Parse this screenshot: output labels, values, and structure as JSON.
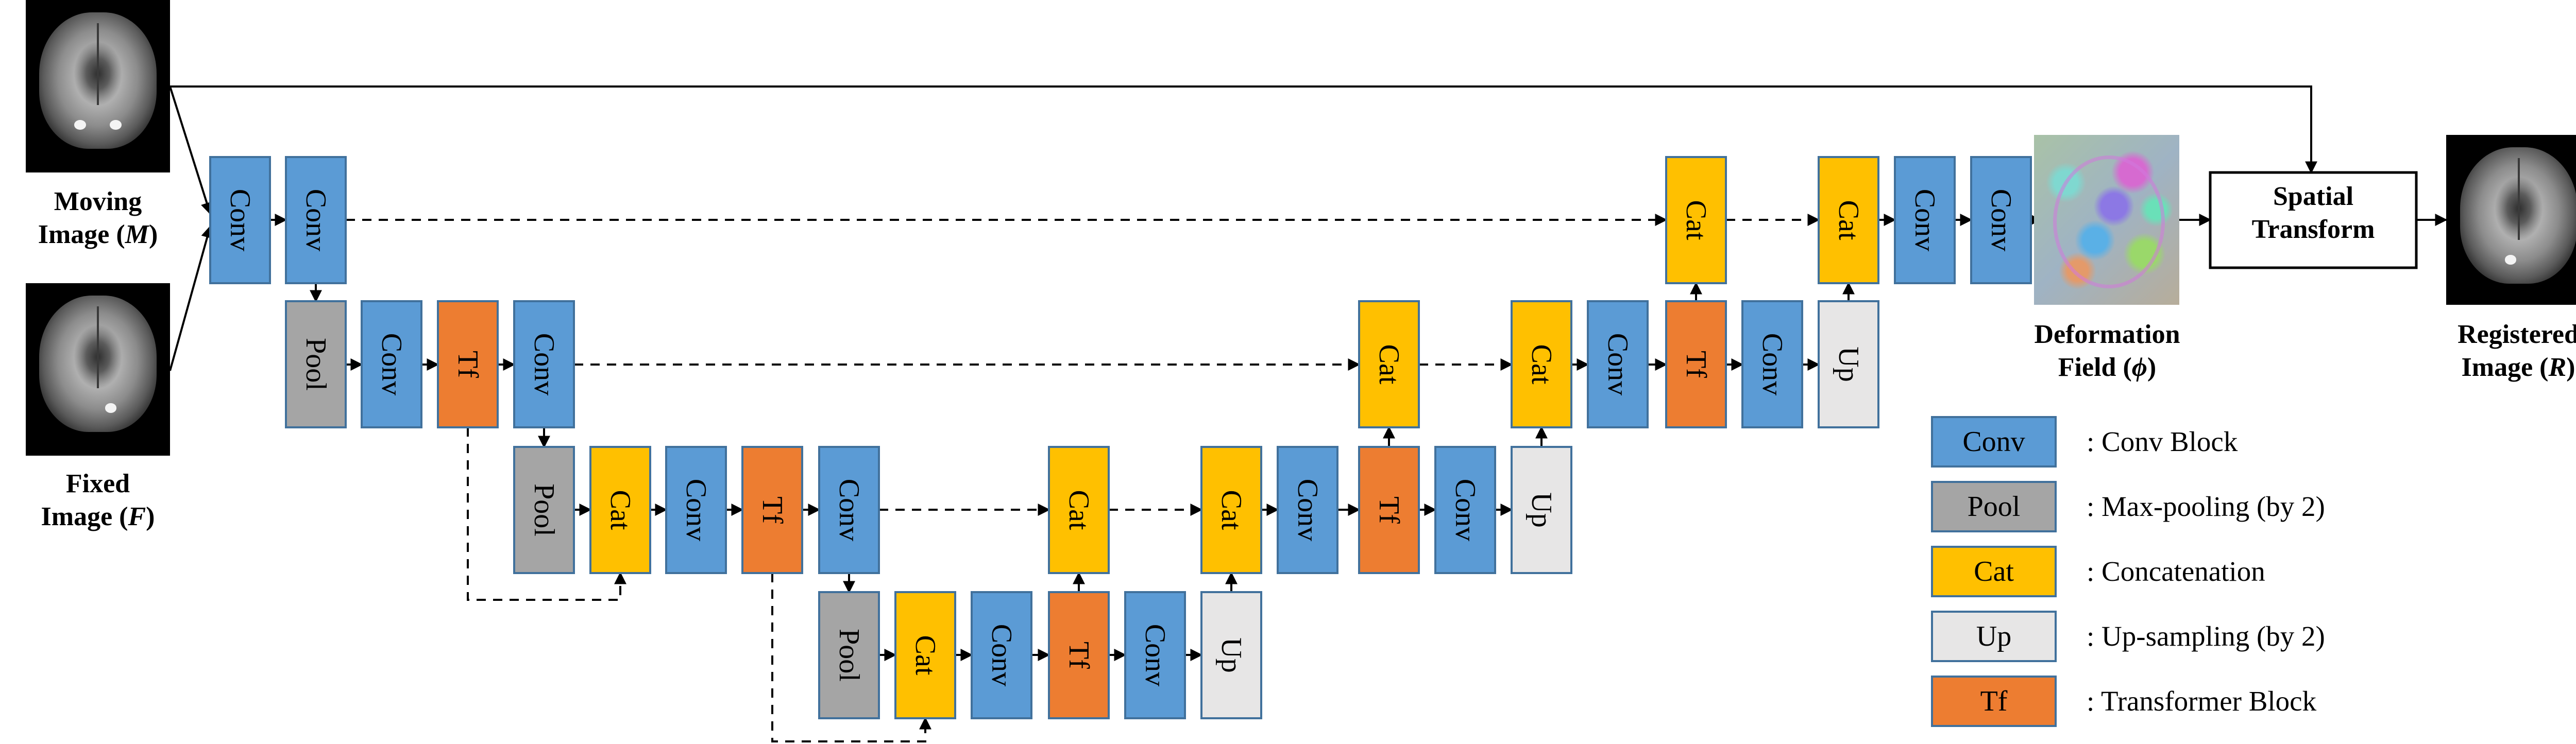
{
  "blocks": {
    "conv": {
      "label": "Conv",
      "color": "#5b9bd5"
    },
    "pool": {
      "label": "Pool",
      "color": "#a5a5a5"
    },
    "cat": {
      "label": "Cat",
      "color": "#ffc000"
    },
    "up": {
      "label": "Up",
      "color": "#e7e6e6"
    },
    "tf": {
      "label": "Tf",
      "color": "#ed7d31"
    }
  },
  "images": {
    "moving": {
      "line1": "Moving",
      "line2_prefix": "Image (",
      "symbol": "M",
      "line2_suffix": ")"
    },
    "fixed": {
      "line1": "Fixed",
      "line2_prefix": "Image (",
      "symbol": "F",
      "line2_suffix": ")"
    },
    "deformation": {
      "line1": "Deformation",
      "line2_prefix": "Field (",
      "symbol": "ϕ",
      "line2_suffix": ")"
    },
    "registered": {
      "line1": "Registered",
      "line2_prefix": "Image (",
      "symbol": "R",
      "line2_suffix": ")"
    }
  },
  "spatial_transform": {
    "line1": "Spatial",
    "line2": "Transform"
  },
  "legend": [
    {
      "block": "conv",
      "label": "Conv",
      "description": ": Conv Block"
    },
    {
      "block": "pool",
      "label": "Pool",
      "description": ": Max-pooling (by 2)"
    },
    {
      "block": "cat",
      "label": "Cat",
      "description": ": Concatenation"
    },
    {
      "block": "up",
      "label": "Up",
      "description": ": Up-sampling (by 2)"
    },
    {
      "block": "tf",
      "label": "Tf",
      "description": ": Transformer Block"
    }
  ]
}
